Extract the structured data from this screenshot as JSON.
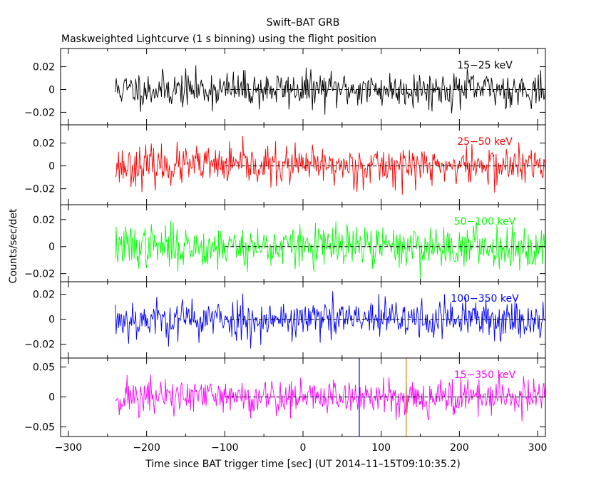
{
  "chart_data": {
    "type": "line",
    "title": "Swift–BAT GRB",
    "subtitle": "Maskweighted Lightcurve (1 s binning) using the flight position",
    "xlabel": "Time since BAT trigger time [sec] (UT 2014–11–15T09:10:35.2)",
    "ylabel": "Counts/sec/det",
    "xlim": [
      -310,
      310
    ],
    "data_start": -240,
    "data_end": 310,
    "x_ticks": [
      -300,
      -200,
      -100,
      0,
      100,
      200,
      300
    ],
    "x_tick_labels": [
      "−300",
      "−200",
      "−100",
      "0",
      "100",
      "200",
      "300"
    ],
    "markers": [
      {
        "name": "blue-marker",
        "x": 72,
        "color": "#0000ff"
      },
      {
        "name": "orange-marker",
        "x": 132,
        "color": "#cc8800"
      }
    ],
    "panels": [
      {
        "name": "15-25",
        "label": "15−25 keV",
        "color": "#000000",
        "ylim": [
          -0.031,
          0.036
        ],
        "noise_sd": 0.0078,
        "seed": 11,
        "y_ticks": [
          0.02,
          0,
          -0.02
        ],
        "y_tick_labels": [
          "0.02",
          "0",
          "−0.02"
        ]
      },
      {
        "name": "25-50",
        "label": "25−50 keV",
        "color": "#ff0000",
        "ylim": [
          -0.034,
          0.036
        ],
        "noise_sd": 0.0085,
        "seed": 23,
        "y_ticks": [
          0.02,
          0,
          -0.02
        ],
        "y_tick_labels": [
          "0.02",
          "0",
          "−0.02"
        ]
      },
      {
        "name": "50-100",
        "label": "50−100 keV",
        "color": "#00ff00",
        "ylim": [
          -0.026,
          0.031
        ],
        "noise_sd": 0.0078,
        "seed": 37,
        "y_ticks": [
          0.02,
          0,
          -0.02
        ],
        "y_tick_labels": [
          "0.02",
          "0",
          "−0.02"
        ]
      },
      {
        "name": "100-350",
        "label": "100−350 keV",
        "color": "#0000ff",
        "ylim": [
          -0.031,
          0.03
        ],
        "noise_sd": 0.0082,
        "seed": 53,
        "y_ticks": [
          0.02,
          0,
          -0.02
        ],
        "y_tick_labels": [
          "0.02",
          "0",
          "−0.02"
        ]
      },
      {
        "name": "15-350",
        "label": "15−350 keV",
        "color": "#ff00ff",
        "ylim": [
          -0.066,
          0.065
        ],
        "noise_sd": 0.016,
        "seed": 71,
        "y_ticks": [
          0.05,
          0,
          -0.05
        ],
        "y_tick_labels": [
          "0.05",
          "0",
          "−0.05"
        ]
      }
    ]
  }
}
